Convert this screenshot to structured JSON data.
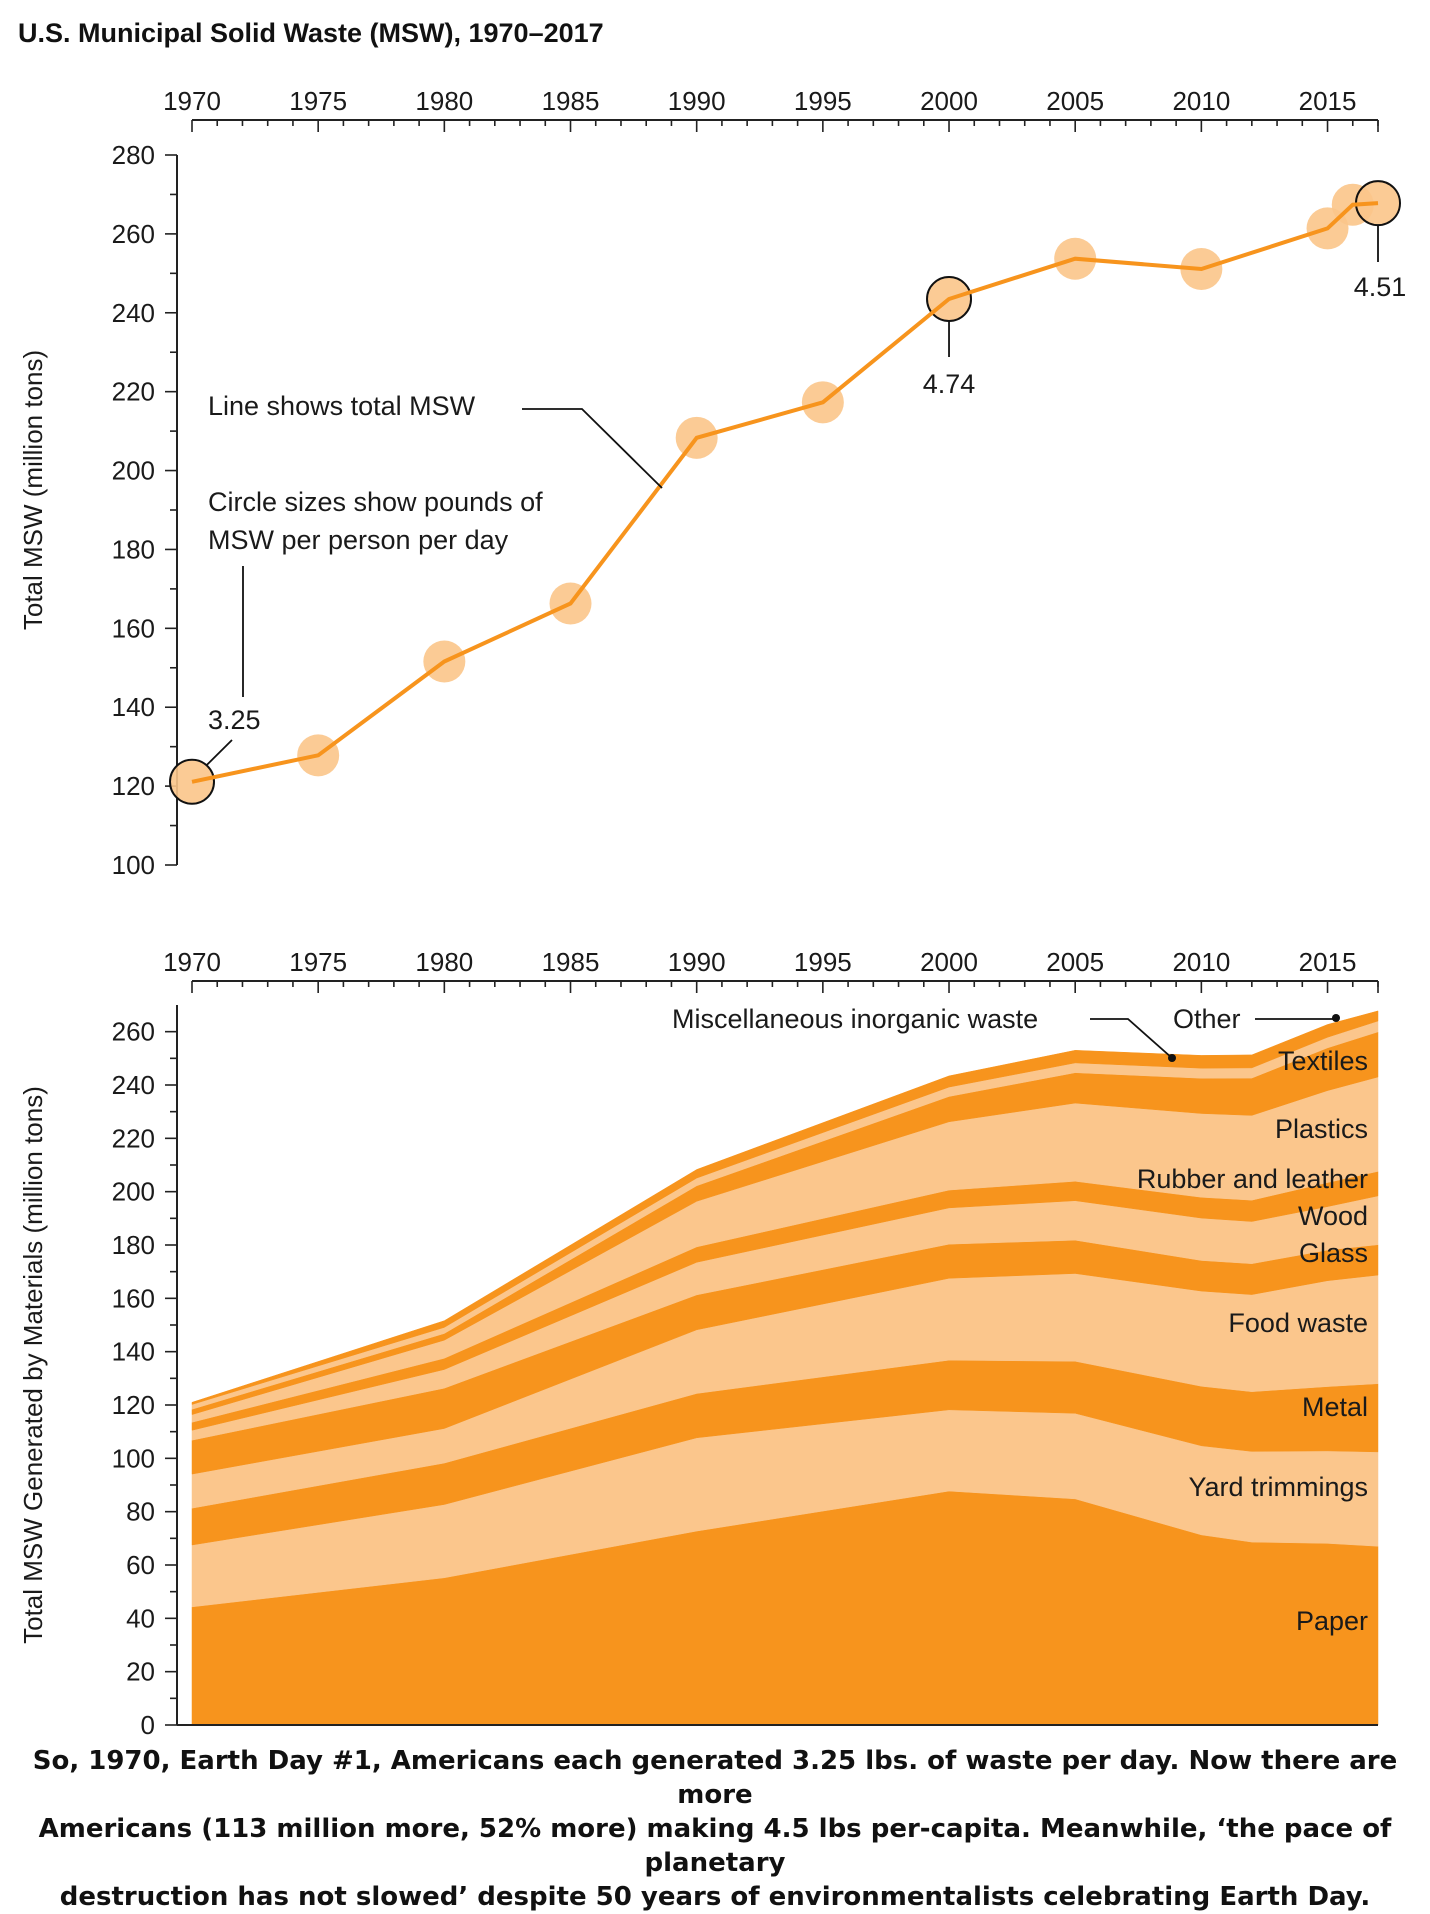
{
  "page": {
    "title": "U.S. Municipal Solid Waste (MSW), 1970–2017",
    "caption_lines": [
      "So, 1970, Earth Day #1, Americans each generated 3.25 lbs. of waste per day. Now there are more",
      "Americans (113 million more, 52% more) making 4.5 lbs per-capita. Meanwhile, ‘the pace of planetary",
      "destruction has not slowed’ despite 50 years of environmentalists celebrating Earth Day."
    ]
  },
  "colors": {
    "line": "#F7941D",
    "circle_fill": "#FBC58A",
    "dark_band": "#F7941D",
    "light_band": "#FBC68C",
    "axis": "#222222"
  },
  "chart_data": [
    {
      "type": "line",
      "ylabel": "Total MSW (million tons)",
      "xlim": [
        1970,
        2017
      ],
      "ylim": [
        100,
        280
      ],
      "x_ticks": [
        "1970",
        "1975",
        "1980",
        "1985",
        "1990",
        "1995",
        "2000",
        "2005",
        "2010",
        "2015"
      ],
      "y_ticks": [
        "100",
        "120",
        "140",
        "160",
        "180",
        "200",
        "220",
        "240",
        "260",
        "280"
      ],
      "x": [
        1970,
        1975,
        1980,
        1985,
        1990,
        1995,
        2000,
        2005,
        2010,
        2015,
        2016,
        2017
      ],
      "values": [
        121.1,
        127.8,
        151.6,
        166.3,
        208.3,
        217.3,
        243.5,
        253.7,
        251.1,
        261.4,
        267.4,
        267.8
      ],
      "circle_size_note": "Circle sizes show pounds of MSW per person per day",
      "per_capita_labels": [
        {
          "year": 1970,
          "value": "3.25"
        },
        {
          "year": 2000,
          "value": "4.74"
        },
        {
          "year": 2017,
          "value": "4.51"
        }
      ],
      "annotations": {
        "line_note": "Line shows total MSW",
        "circle_note_line1": "Circle sizes show pounds of",
        "circle_note_line2": "MSW per person per day"
      }
    },
    {
      "type": "area",
      "ylabel": "Total MSW Generated by Materials (million tons)",
      "xlim": [
        1970,
        2017
      ],
      "ylim": [
        0,
        270
      ],
      "x_ticks": [
        "1970",
        "1975",
        "1980",
        "1985",
        "1990",
        "1995",
        "2000",
        "2005",
        "2010",
        "2015"
      ],
      "y_ticks": [
        "0",
        "20",
        "40",
        "60",
        "80",
        "100",
        "120",
        "140",
        "160",
        "180",
        "200",
        "220",
        "240",
        "260"
      ],
      "x": [
        1970,
        1980,
        1990,
        2000,
        2005,
        2010,
        2012,
        2015,
        2017
      ],
      "series": [
        {
          "name": "Paper",
          "values": [
            44.3,
            55.2,
            72.7,
            87.7,
            84.8,
            71.3,
            68.6,
            68.1,
            67.0
          ]
        },
        {
          "name": "Yard trimmings",
          "values": [
            23.2,
            27.5,
            35.0,
            30.5,
            32.1,
            33.4,
            34.0,
            34.7,
            35.4
          ]
        },
        {
          "name": "Metal",
          "values": [
            13.8,
            15.5,
            16.6,
            18.6,
            19.5,
            22.3,
            22.4,
            24.1,
            25.6
          ]
        },
        {
          "name": "Food waste",
          "values": [
            12.8,
            13.0,
            23.9,
            30.7,
            32.9,
            35.7,
            36.4,
            39.7,
            40.7
          ]
        },
        {
          "name": "Glass",
          "values": [
            12.7,
            15.1,
            13.1,
            12.8,
            12.5,
            11.5,
            11.6,
            11.5,
            11.4
          ]
        },
        {
          "name": "Wood",
          "values": [
            3.7,
            7.0,
            12.2,
            13.6,
            14.8,
            15.9,
            15.8,
            16.3,
            18.3
          ]
        },
        {
          "name": "Rubber and leather",
          "values": [
            3.0,
            4.2,
            5.8,
            6.7,
            7.3,
            7.8,
            8.0,
            9.0,
            9.2
          ]
        },
        {
          "name": "Plastics",
          "values": [
            2.9,
            6.8,
            17.1,
            25.6,
            29.3,
            31.4,
            31.8,
            34.5,
            35.4
          ]
        },
        {
          "name": "Textiles",
          "values": [
            2.0,
            2.5,
            5.8,
            9.5,
            11.4,
            13.2,
            14.0,
            16.0,
            16.9
          ]
        },
        {
          "name": "Miscellaneous inorganic waste",
          "values": [
            1.8,
            2.3,
            2.9,
            3.5,
            3.7,
            3.8,
            3.8,
            4.0,
            4.1
          ]
        },
        {
          "name": "Other",
          "values": [
            0.8,
            2.5,
            3.2,
            4.2,
            4.7,
            4.8,
            4.9,
            4.8,
            3.8
          ]
        }
      ],
      "labels": {
        "misc": "Miscellaneous inorganic waste",
        "other": "Other",
        "textiles": "Textiles",
        "plastics": "Plastics",
        "rubber": "Rubber and leather",
        "wood": "Wood",
        "glass": "Glass",
        "food": "Food waste",
        "metal": "Metal",
        "yard": "Yard trimmings",
        "paper": "Paper"
      }
    }
  ]
}
